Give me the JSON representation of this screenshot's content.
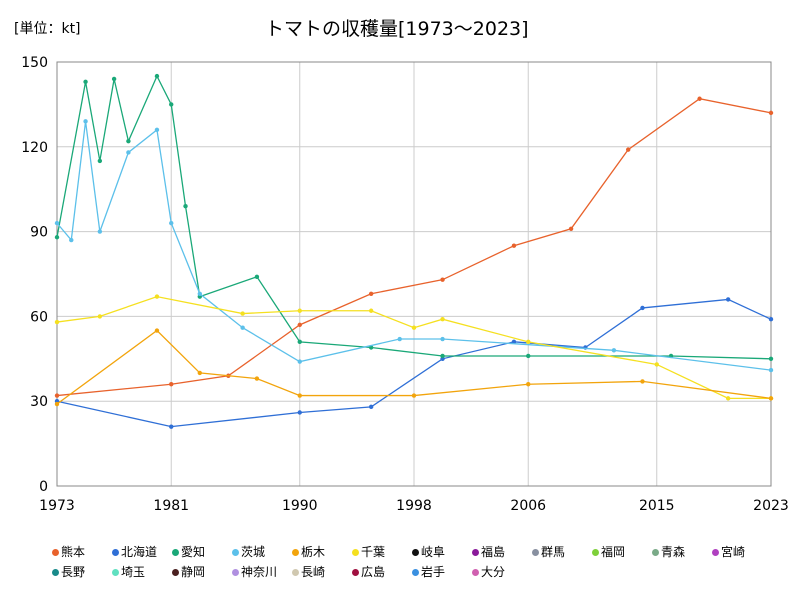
{
  "chart_data": {
    "type": "line",
    "title": "トマトの収穫量[1973〜2023]",
    "unit_label": "[単位：kt]",
    "ylim": [
      0,
      150
    ],
    "yticks": [
      0,
      30,
      60,
      90,
      120,
      150
    ],
    "xticks": [
      1973,
      1981,
      1990,
      1998,
      2006,
      2015,
      2023
    ],
    "series": [
      {
        "name": "熊本",
        "color": "#e8622c",
        "x": [
          1973,
          1981,
          1985,
          1990,
          1995,
          2000,
          2005,
          2009,
          2013,
          2018,
          2023
        ],
        "values": [
          32,
          36,
          39,
          57,
          68,
          73,
          85,
          91,
          119,
          137,
          132
        ]
      },
      {
        "name": "北海道",
        "color": "#2f6fd6",
        "x": [
          1973,
          1981,
          1990,
          1995,
          2000,
          2005,
          2010,
          2014,
          2020,
          2023
        ],
        "values": [
          30,
          21,
          26,
          28,
          45,
          51,
          49,
          63,
          66,
          59
        ]
      },
      {
        "name": "愛知",
        "color": "#1aa878",
        "x": [
          1973,
          1975,
          1976,
          1977,
          1978,
          1980,
          1981,
          1982,
          1983,
          1987,
          1990,
          1995,
          2000,
          2006,
          2016,
          2023
        ],
        "values": [
          88,
          143,
          115,
          144,
          122,
          145,
          135,
          99,
          67,
          74,
          51,
          49,
          46,
          46,
          46,
          45
        ]
      },
      {
        "name": "茨城",
        "color": "#5cc0ea",
        "x": [
          1973,
          1974,
          1975,
          1976,
          1978,
          1980,
          1981,
          1983,
          1986,
          1990,
          1997,
          2000,
          2012,
          2023
        ],
        "values": [
          93,
          87,
          129,
          90,
          118,
          126,
          93,
          68,
          56,
          44,
          52,
          52,
          48,
          41
        ]
      },
      {
        "name": "千葉",
        "color": "#f5e020",
        "x": [
          1973,
          1976,
          1980,
          1986,
          1990,
          1995,
          1998,
          2000,
          2006,
          2015,
          2020,
          2023
        ],
        "values": [
          58,
          60,
          67,
          61,
          62,
          62,
          56,
          59,
          51,
          43,
          31,
          31
        ]
      },
      {
        "name": "栃木",
        "color": "#f2a40c",
        "x": [
          1973,
          1980,
          1983,
          1987,
          1990,
          1998,
          2006,
          2014,
          2023
        ],
        "values": [
          29,
          55,
          40,
          38,
          32,
          32,
          36,
          37,
          31
        ]
      }
    ]
  },
  "legend": [
    "熊本",
    "北海道",
    "愛知",
    "茨城",
    "栃木",
    "千葉",
    "岐阜",
    "福島",
    "群馬",
    "福岡",
    "青森",
    "宮崎",
    "長野",
    "埼玉",
    "静岡",
    "神奈川",
    "長崎",
    "広島",
    "岩手",
    "大分"
  ],
  "legend_colors": [
    "#e8622c",
    "#2f6fd6",
    "#1aa878",
    "#5cc0ea",
    "#f2a40c",
    "#f5e020",
    "#111111",
    "#8a1a9a",
    "#8890a0",
    "#7ed03a",
    "#7aaa88",
    "#b040c0",
    "#188a8a",
    "#60e0c0",
    "#4a2020",
    "#b090e0",
    "#d0c8b0",
    "#a01040",
    "#3a90e0",
    "#d060b0"
  ]
}
